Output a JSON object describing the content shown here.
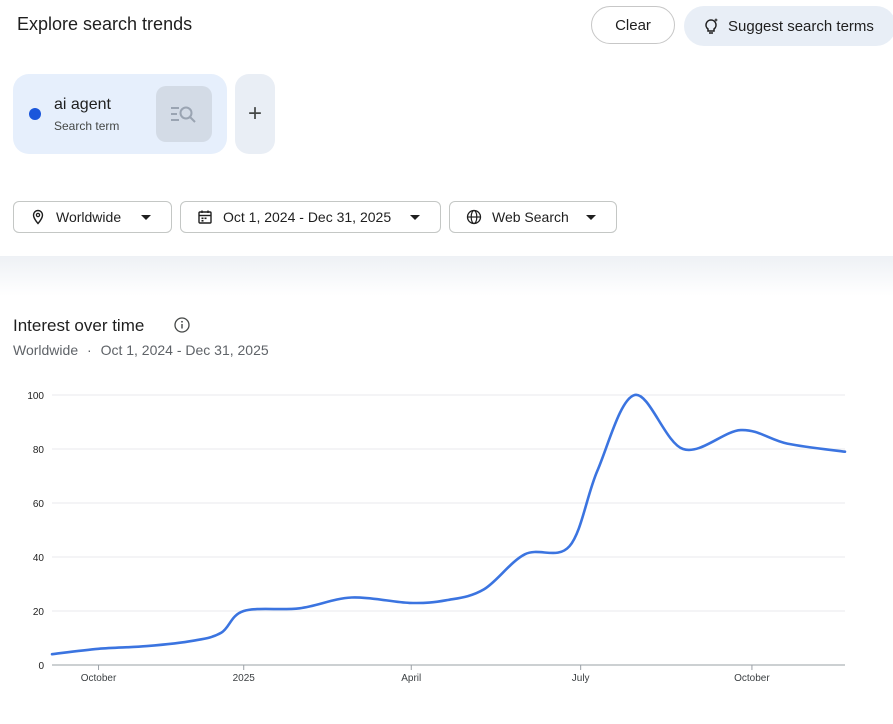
{
  "header": {
    "title": "Explore search trends",
    "clear_label": "Clear",
    "suggest_label": "Suggest search terms"
  },
  "term": {
    "name": "ai agent",
    "type": "Search term",
    "color": "#1a56db"
  },
  "add_label": "+",
  "filters": {
    "location": "Worldwide",
    "date_range": "Oct 1, 2024 - Dec 31, 2025",
    "property": "Web Search"
  },
  "chart": {
    "title": "Interest over time",
    "subtitle_location": "Worldwide",
    "subtitle_sep": "·",
    "subtitle_range": "Oct 1, 2024 - Dec 31, 2025"
  },
  "chart_data": {
    "type": "line",
    "title": "Interest over time",
    "xlabel": "",
    "ylabel": "",
    "ylim": [
      0,
      100
    ],
    "yticks": [
      0,
      20,
      40,
      60,
      80,
      100
    ],
    "xticks": [
      {
        "label": "October",
        "date": "2024-10-15"
      },
      {
        "label": "2025",
        "date": "2025-01-01"
      },
      {
        "label": "April",
        "date": "2025-04-01"
      },
      {
        "label": "July",
        "date": "2025-07-01"
      },
      {
        "label": "October",
        "date": "2025-10-01"
      }
    ],
    "grid": true,
    "series": [
      {
        "name": "ai agent",
        "color": "#3b74e0",
        "points": [
          {
            "x": "2024-09-20",
            "y": 4
          },
          {
            "x": "2024-10-15",
            "y": 6
          },
          {
            "x": "2024-11-10",
            "y": 7
          },
          {
            "x": "2024-12-05",
            "y": 9
          },
          {
            "x": "2024-12-20",
            "y": 12
          },
          {
            "x": "2025-01-01",
            "y": 20
          },
          {
            "x": "2025-01-31",
            "y": 21
          },
          {
            "x": "2025-02-28",
            "y": 25
          },
          {
            "x": "2025-03-31",
            "y": 23
          },
          {
            "x": "2025-04-20",
            "y": 24
          },
          {
            "x": "2025-05-10",
            "y": 28
          },
          {
            "x": "2025-06-01",
            "y": 41
          },
          {
            "x": "2025-06-25",
            "y": 44
          },
          {
            "x": "2025-07-10",
            "y": 72
          },
          {
            "x": "2025-07-30",
            "y": 100
          },
          {
            "x": "2025-08-25",
            "y": 80
          },
          {
            "x": "2025-09-25",
            "y": 87
          },
          {
            "x": "2025-10-20",
            "y": 82
          },
          {
            "x": "2025-11-20",
            "y": 79
          }
        ]
      }
    ]
  }
}
